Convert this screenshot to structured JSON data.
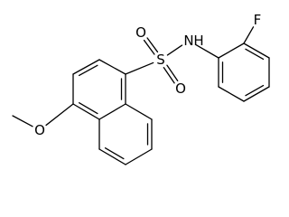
{
  "atoms": {
    "sulfur": "S",
    "oxygen_top": "O",
    "oxygen_bottom": "O",
    "nitrogen": "N",
    "hydrogen": "H",
    "fluorine": "F",
    "oxygen_methoxy": "O"
  }
}
